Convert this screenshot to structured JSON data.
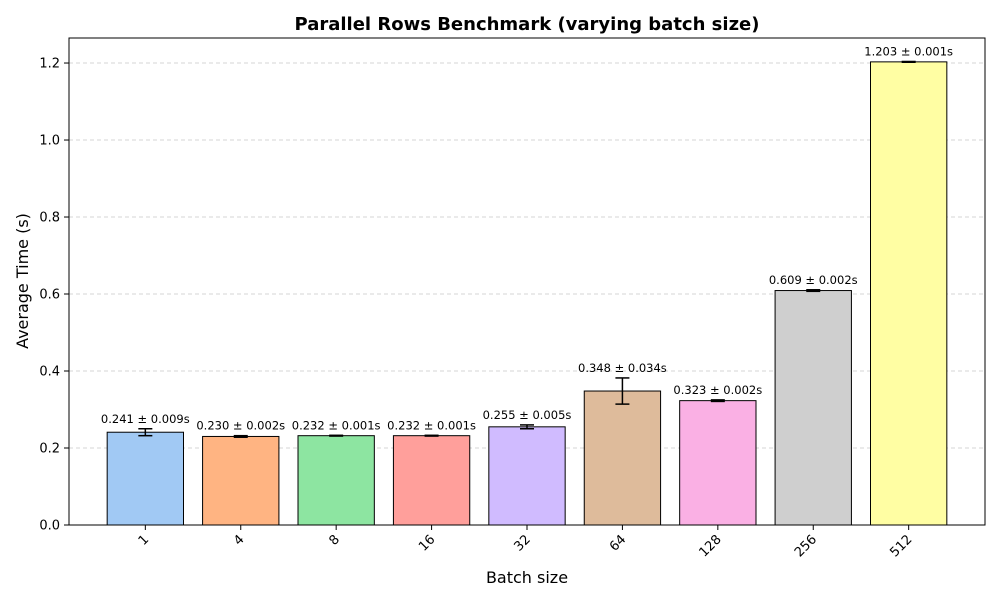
{
  "chart_data": {
    "type": "bar",
    "title": "Parallel Rows Benchmark (varying batch size)",
    "xlabel": "Batch size",
    "ylabel": "Average Time (s)",
    "categories": [
      "1",
      "4",
      "8",
      "16",
      "32",
      "64",
      "128",
      "256",
      "512"
    ],
    "values": [
      0.241,
      0.23,
      0.232,
      0.232,
      0.255,
      0.348,
      0.323,
      0.609,
      1.203
    ],
    "errors": [
      0.009,
      0.002,
      0.001,
      0.001,
      0.005,
      0.034,
      0.002,
      0.002,
      0.001
    ],
    "data_labels": [
      "0.241 ± 0.009s",
      "0.230 ± 0.002s",
      "0.232 ± 0.001s",
      "0.232 ± 0.001s",
      "0.255 ± 0.005s",
      "0.348 ± 0.034s",
      "0.323 ± 0.002s",
      "0.609 ± 0.002s",
      "1.203 ± 0.001s"
    ],
    "colors": [
      "#a1c9f4",
      "#ffb482",
      "#8de5a1",
      "#ff9f9b",
      "#d0bbff",
      "#debb9b",
      "#fab0e4",
      "#cfcfcf",
      "#fffea3"
    ],
    "ylim": [
      0,
      1.265
    ],
    "yticks": [
      "0.0",
      "0.2",
      "0.4",
      "0.6",
      "0.8",
      "1.0",
      "1.2"
    ],
    "grid": "y-dashed",
    "xtick_rotation": "45"
  }
}
